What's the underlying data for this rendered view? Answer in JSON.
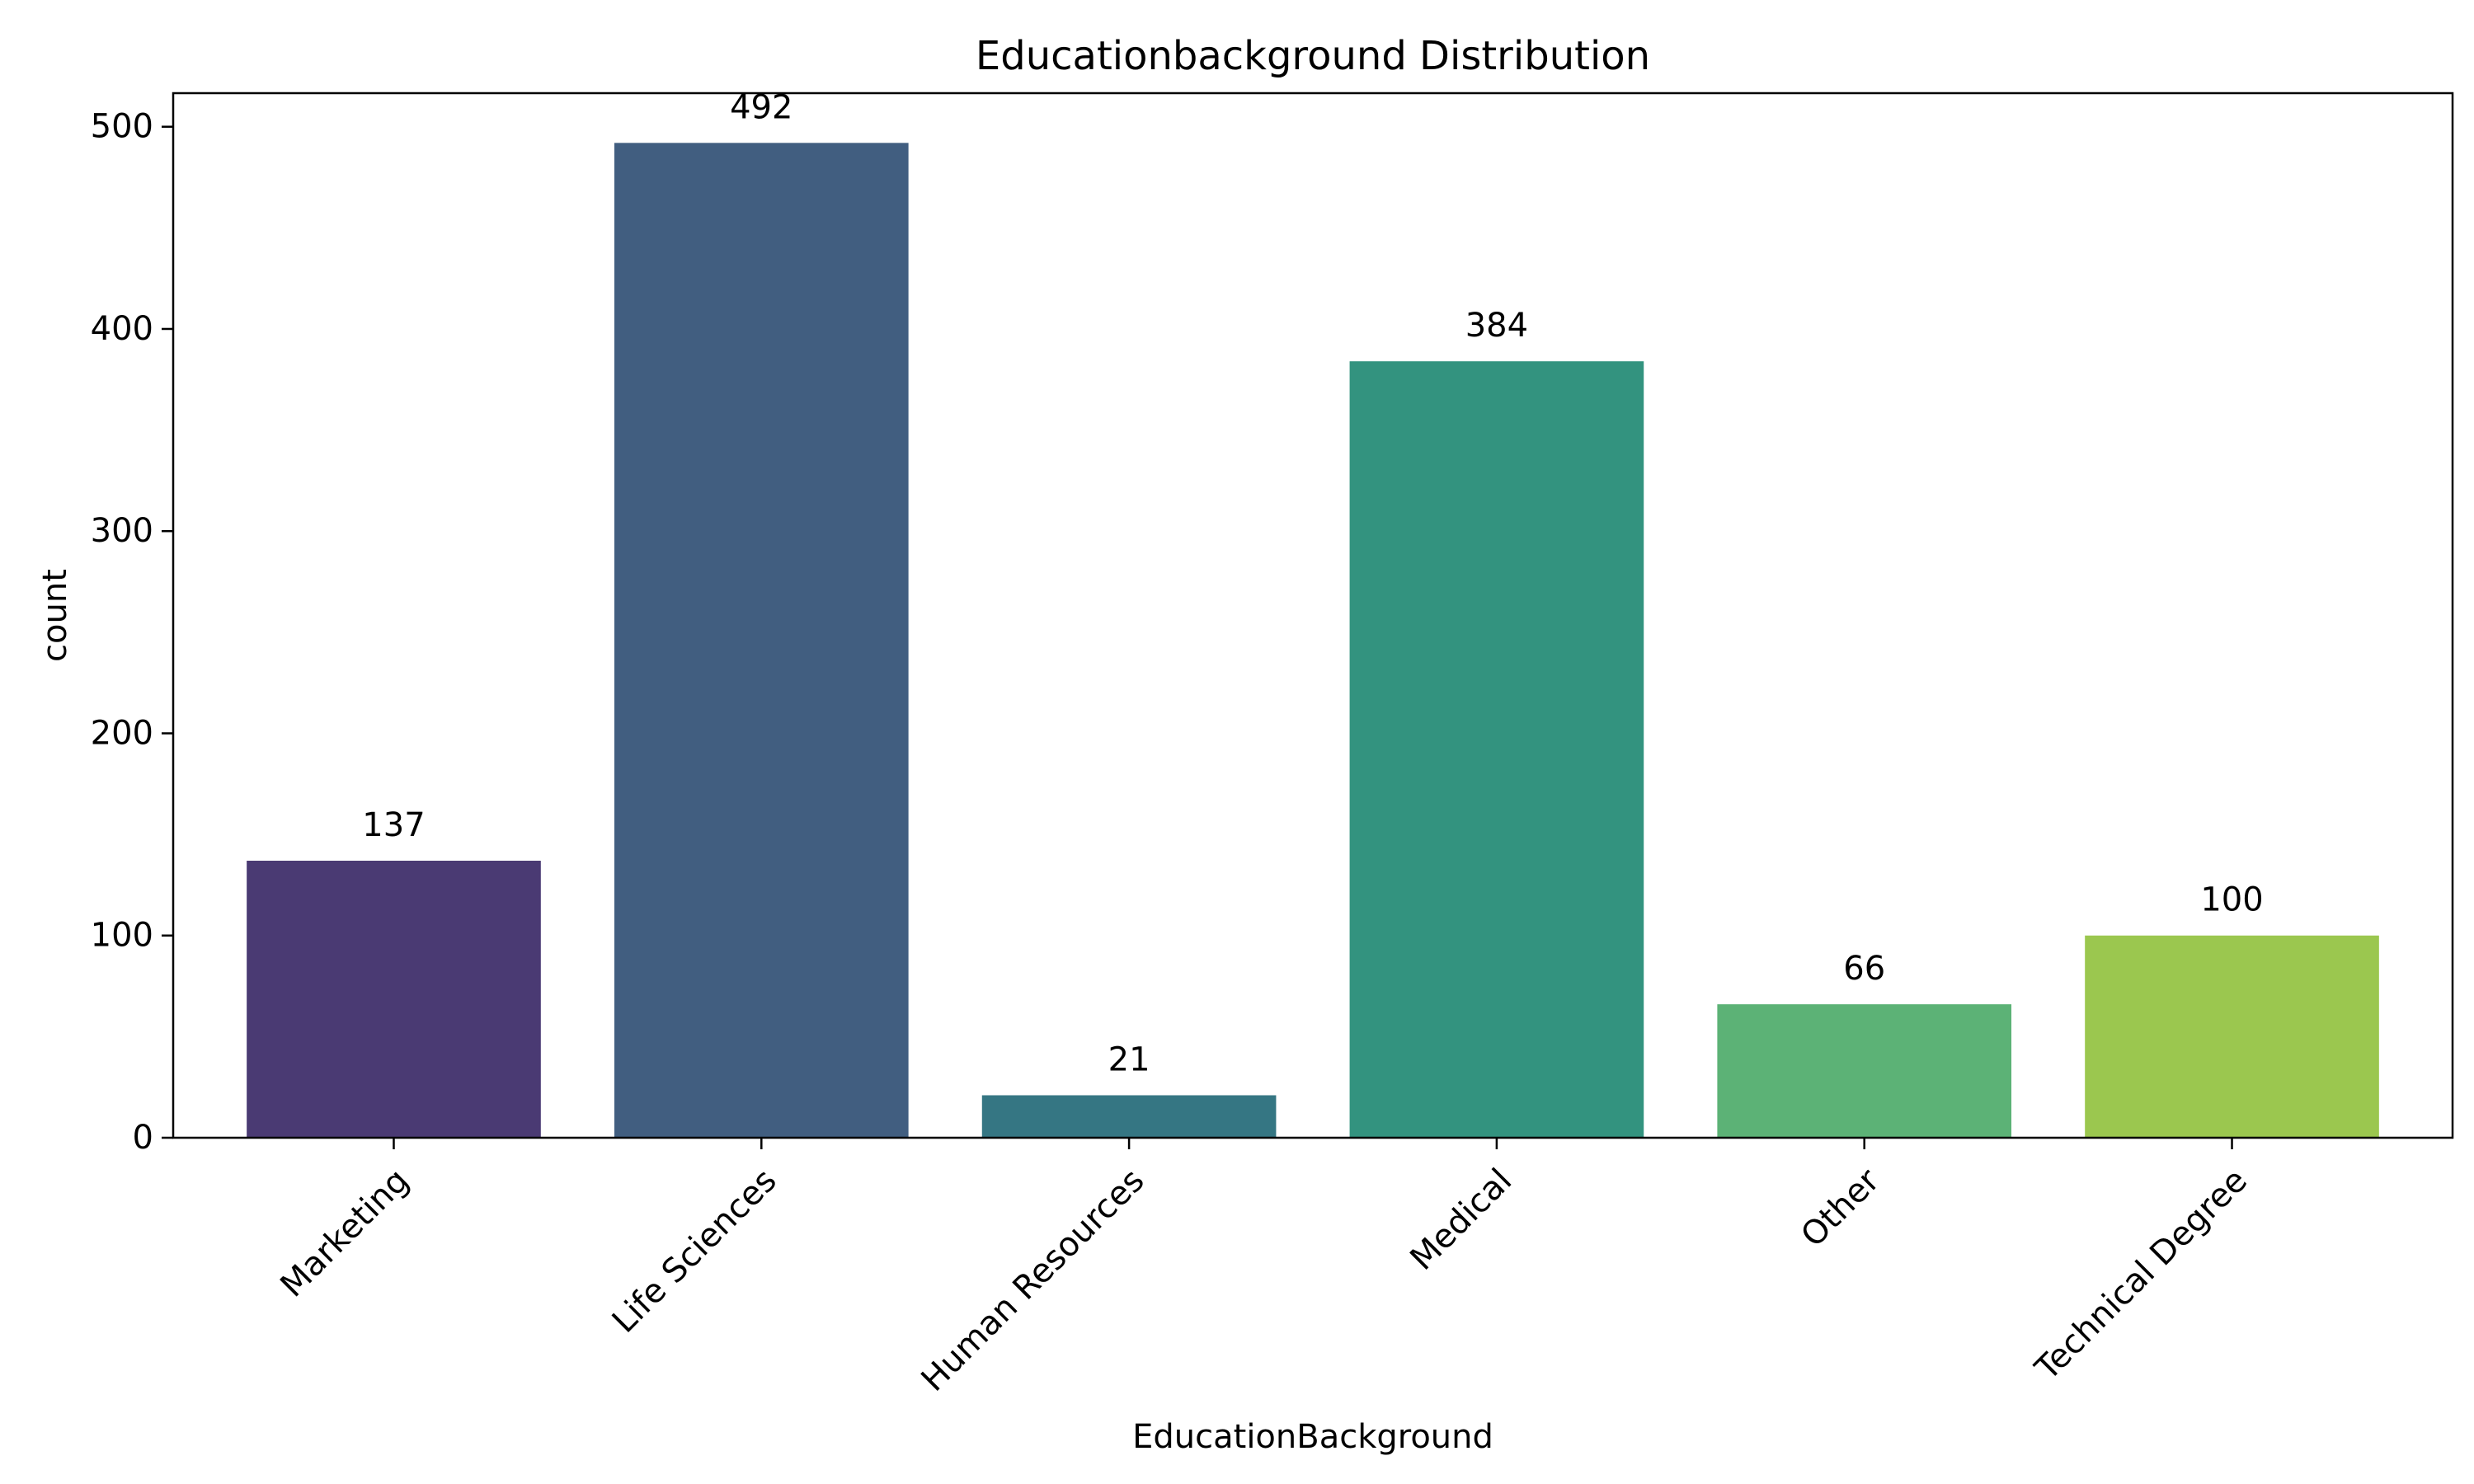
{
  "chart_data": {
    "type": "bar",
    "title": "Educationbackground Distribution",
    "xlabel": "EducationBackground",
    "ylabel": "count",
    "categories": [
      "Marketing",
      "Life Sciences",
      "Human Resources",
      "Medical",
      "Other",
      "Technical Degree"
    ],
    "values": [
      137,
      492,
      21,
      384,
      66,
      100
    ],
    "value_labels": [
      "137",
      "492",
      "21",
      "384",
      "66",
      "100"
    ],
    "colors": [
      "#4a3a73",
      "#415e80",
      "#357683",
      "#33937f",
      "#5cb276",
      "#9bc74f"
    ],
    "yticks": [
      0,
      100,
      200,
      300,
      400,
      500
    ],
    "ytick_labels": [
      "0",
      "100",
      "200",
      "300",
      "400",
      "500"
    ],
    "ylim": [
      0,
      516.6
    ],
    "grid": false,
    "legend": "none"
  }
}
